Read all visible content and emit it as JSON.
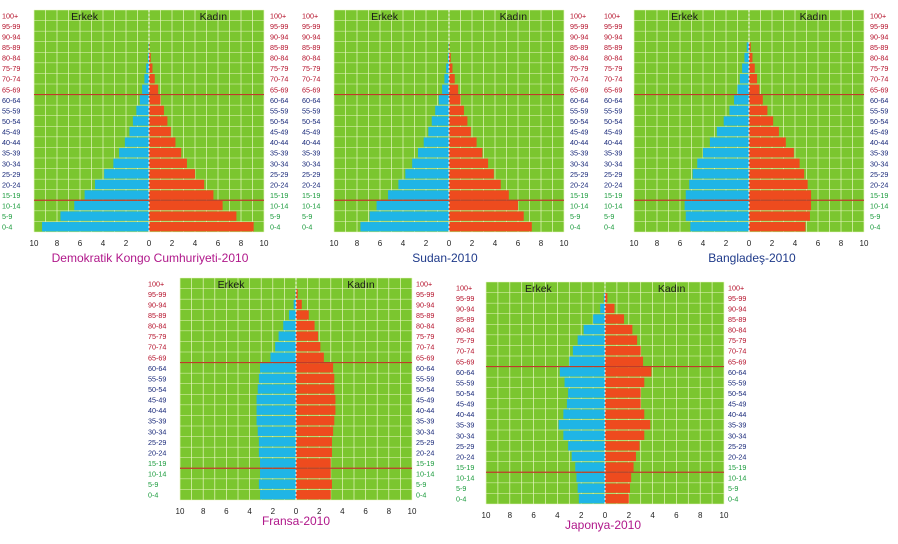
{
  "age_groups": [
    "0-4",
    "5-9",
    "10-14",
    "15-19",
    "20-24",
    "25-29",
    "30-34",
    "35-39",
    "40-44",
    "45-49",
    "50-54",
    "55-59",
    "60-64",
    "65-69",
    "70-74",
    "75-79",
    "80-84",
    "85-89",
    "90-94",
    "95-99",
    "100+"
  ],
  "x_ticks": [
    "10",
    "8",
    "6",
    "4",
    "2",
    "0",
    "2",
    "4",
    "6",
    "8",
    "10"
  ],
  "male_label": "Erkek",
  "female_label": "Kadın",
  "colors": {
    "background": "#7bc62f",
    "grid": "#e9f6c2",
    "male": "#1fb5e6",
    "female": "#ee4b1e",
    "divider": "#c0392b",
    "age_young": "#1a9b3c",
    "age_adult": "#1a2a7a",
    "age_old": "#b5122b",
    "title_magenta": "#b0178a",
    "title_blue": "#1f3a8a"
  },
  "chart_data": [
    {
      "type": "bar",
      "title": "Demokratik Kongo Cumhuriyeti-2010",
      "categories": [
        "0-4",
        "5-9",
        "10-14",
        "15-19",
        "20-24",
        "25-29",
        "30-34",
        "35-39",
        "40-44",
        "45-49",
        "50-54",
        "55-59",
        "60-64",
        "65-69",
        "70-74",
        "75-79",
        "80-84",
        "85-89",
        "90-94",
        "95-99",
        "100+"
      ],
      "series": [
        {
          "name": "Erkek",
          "values": [
            9.3,
            7.7,
            6.5,
            5.6,
            4.7,
            3.9,
            3.1,
            2.6,
            2.1,
            1.7,
            1.4,
            1.1,
            0.8,
            0.6,
            0.4,
            0.25,
            0.1,
            0.05,
            0,
            0,
            0
          ]
        },
        {
          "name": "Kadın",
          "values": [
            9.1,
            7.6,
            6.4,
            5.6,
            4.8,
            4.0,
            3.3,
            2.8,
            2.3,
            1.9,
            1.6,
            1.3,
            1.0,
            0.8,
            0.5,
            0.3,
            0.15,
            0.05,
            0,
            0,
            0
          ]
        }
      ],
      "xlim": [
        -10,
        10
      ],
      "title_color": "magenta"
    },
    {
      "type": "bar",
      "title": "Sudan-2010",
      "categories": [
        "0-4",
        "5-9",
        "10-14",
        "15-19",
        "20-24",
        "25-29",
        "30-34",
        "35-39",
        "40-44",
        "45-49",
        "50-54",
        "55-59",
        "60-64",
        "65-69",
        "70-74",
        "75-79",
        "80-84",
        "85-89",
        "90-94",
        "95-99",
        "100+"
      ],
      "series": [
        {
          "name": "Erkek",
          "values": [
            7.7,
            6.9,
            6.3,
            5.3,
            4.4,
            3.8,
            3.2,
            2.7,
            2.2,
            1.8,
            1.5,
            1.2,
            0.9,
            0.6,
            0.4,
            0.25,
            0.1,
            0.05,
            0,
            0,
            0
          ]
        },
        {
          "name": "Kadın",
          "values": [
            7.2,
            6.5,
            6.0,
            5.2,
            4.5,
            3.9,
            3.4,
            2.9,
            2.4,
            1.9,
            1.6,
            1.3,
            1.0,
            0.8,
            0.5,
            0.3,
            0.15,
            0.05,
            0,
            0,
            0
          ]
        }
      ],
      "xlim": [
        -10,
        10
      ],
      "title_color": "blue"
    },
    {
      "type": "bar",
      "title": "Bangladeş-2010",
      "categories": [
        "0-4",
        "5-9",
        "10-14",
        "15-19",
        "20-24",
        "25-29",
        "30-34",
        "35-39",
        "40-44",
        "45-49",
        "50-54",
        "55-59",
        "60-64",
        "65-69",
        "70-74",
        "75-79",
        "80-84",
        "85-89",
        "90-94",
        "95-99",
        "100+"
      ],
      "series": [
        {
          "name": "Erkek",
          "values": [
            5.1,
            5.5,
            5.6,
            5.5,
            5.2,
            4.9,
            4.5,
            4.0,
            3.4,
            2.8,
            2.2,
            1.7,
            1.3,
            1.0,
            0.8,
            0.6,
            0.4,
            0.2,
            0,
            0,
            0
          ]
        },
        {
          "name": "Kadın",
          "values": [
            4.9,
            5.3,
            5.4,
            5.4,
            5.1,
            4.8,
            4.4,
            3.9,
            3.2,
            2.6,
            2.1,
            1.6,
            1.2,
            0.9,
            0.7,
            0.5,
            0.3,
            0.15,
            0,
            0,
            0
          ]
        }
      ],
      "xlim": [
        -10,
        10
      ],
      "title_color": "blue"
    },
    {
      "type": "bar",
      "title": "Fransa-2010",
      "categories": [
        "0-4",
        "5-9",
        "10-14",
        "15-19",
        "20-24",
        "25-29",
        "30-34",
        "35-39",
        "40-44",
        "45-49",
        "50-54",
        "55-59",
        "60-64",
        "65-69",
        "70-74",
        "75-79",
        "80-84",
        "85-89",
        "90-94",
        "95-99",
        "100+"
      ],
      "series": [
        {
          "name": "Erkek",
          "values": [
            3.1,
            3.2,
            3.1,
            3.1,
            3.2,
            3.2,
            3.3,
            3.4,
            3.4,
            3.4,
            3.3,
            3.2,
            3.1,
            2.2,
            1.8,
            1.5,
            1.1,
            0.6,
            0.2,
            0.05,
            0
          ]
        },
        {
          "name": "Kadın",
          "values": [
            3.0,
            3.1,
            3.0,
            3.0,
            3.1,
            3.1,
            3.2,
            3.3,
            3.4,
            3.4,
            3.3,
            3.3,
            3.2,
            2.4,
            2.1,
            1.9,
            1.6,
            1.1,
            0.5,
            0.15,
            0
          ]
        }
      ],
      "xlim": [
        -10,
        10
      ],
      "title_color": "magenta"
    },
    {
      "type": "bar",
      "title": "Japonya-2010",
      "categories": [
        "0-4",
        "5-9",
        "10-14",
        "15-19",
        "20-24",
        "25-29",
        "30-34",
        "35-39",
        "40-44",
        "45-49",
        "50-54",
        "55-59",
        "60-64",
        "65-69",
        "70-74",
        "75-79",
        "80-84",
        "85-89",
        "90-94",
        "95-99",
        "100+"
      ],
      "series": [
        {
          "name": "Erkek",
          "values": [
            2.2,
            2.3,
            2.4,
            2.5,
            2.8,
            3.1,
            3.5,
            3.9,
            3.5,
            3.2,
            3.1,
            3.4,
            3.8,
            3.0,
            2.7,
            2.3,
            1.8,
            1.0,
            0.4,
            0.1,
            0
          ]
        },
        {
          "name": "Kadın",
          "values": [
            2.0,
            2.1,
            2.2,
            2.4,
            2.6,
            2.9,
            3.3,
            3.8,
            3.3,
            3.0,
            3.0,
            3.3,
            3.9,
            3.2,
            3.0,
            2.7,
            2.3,
            1.6,
            0.8,
            0.2,
            0
          ]
        }
      ],
      "xlim": [
        -10,
        10
      ],
      "title_color": "magenta"
    }
  ]
}
